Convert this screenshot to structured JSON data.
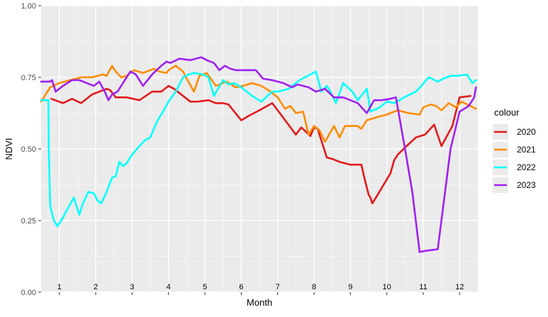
{
  "chart_data": {
    "type": "line",
    "title": "",
    "xlabel": "Month",
    "ylabel": "NDVI",
    "xlim": [
      0.5,
      12.5
    ],
    "ylim": [
      0,
      1
    ],
    "x_ticks": [
      1,
      2,
      3,
      4,
      5,
      6,
      7,
      8,
      9,
      10,
      11,
      12
    ],
    "x_tick_labels": [
      "1",
      "2",
      "3",
      "4",
      "5",
      "6",
      "7",
      "8",
      "9",
      "10",
      "11",
      "12"
    ],
    "y_ticks": [
      0,
      0.25,
      0.5,
      0.75,
      1
    ],
    "y_tick_labels": [
      "0.00",
      "0.25",
      "0.50",
      "0.75",
      "1.00"
    ],
    "grid": true,
    "legend": {
      "title": "colour",
      "position": "right"
    },
    "series": [
      {
        "name": "2020",
        "color": "#e31a1c",
        "x": [
          0.78,
          1.1,
          1.35,
          1.6,
          1.9,
          2.3,
          2.4,
          2.55,
          2.85,
          3.2,
          3.55,
          3.8,
          4.0,
          4.15,
          4.6,
          4.8,
          5.1,
          5.3,
          5.5,
          5.65,
          6.0,
          6.2,
          6.5,
          6.85,
          7.0,
          7.5,
          7.65,
          7.9,
          8.0,
          8.1,
          8.35,
          8.5,
          8.7,
          9.0,
          9.3,
          9.4,
          9.5,
          9.55,
          9.6,
          9.7,
          10.1,
          10.2,
          10.3,
          10.5,
          10.8,
          11.05,
          11.3,
          11.5,
          11.8,
          12.0,
          12.3
        ],
        "y": [
          0.675,
          0.66,
          0.675,
          0.66,
          0.69,
          0.71,
          0.705,
          0.68,
          0.68,
          0.67,
          0.7,
          0.7,
          0.72,
          0.71,
          0.665,
          0.665,
          0.67,
          0.66,
          0.66,
          0.655,
          0.6,
          0.615,
          0.635,
          0.66,
          0.635,
          0.55,
          0.575,
          0.545,
          0.575,
          0.57,
          0.47,
          0.465,
          0.455,
          0.445,
          0.445,
          0.39,
          0.34,
          0.33,
          0.31,
          0.33,
          0.415,
          0.46,
          0.48,
          0.505,
          0.54,
          0.55,
          0.585,
          0.51,
          0.58,
          0.68,
          0.685
        ]
      },
      {
        "name": "2021",
        "color": "#ff8c00",
        "x": [
          0.5,
          0.75,
          1.0,
          1.3,
          1.6,
          1.9,
          2.2,
          2.3,
          2.45,
          2.55,
          2.7,
          2.85,
          3.05,
          3.3,
          3.6,
          3.75,
          3.95,
          4.0,
          4.2,
          4.4,
          4.5,
          4.7,
          4.85,
          5.05,
          5.3,
          5.6,
          5.85,
          6.05,
          6.3,
          6.55,
          6.75,
          7.0,
          7.2,
          7.35,
          7.5,
          7.7,
          7.85,
          8.0,
          8.15,
          8.3,
          8.55,
          8.7,
          8.85,
          9.2,
          9.3,
          9.45,
          9.7,
          10.0,
          10.3,
          10.6,
          10.9,
          11.0,
          11.2,
          11.35,
          11.5,
          11.7,
          11.9,
          12.05,
          12.3,
          12.45
        ],
        "y": [
          0.665,
          0.715,
          0.73,
          0.74,
          0.75,
          0.75,
          0.76,
          0.755,
          0.79,
          0.77,
          0.75,
          0.755,
          0.775,
          0.765,
          0.78,
          0.77,
          0.765,
          0.775,
          0.79,
          0.77,
          0.745,
          0.7,
          0.755,
          0.765,
          0.72,
          0.735,
          0.715,
          0.72,
          0.73,
          0.72,
          0.705,
          0.68,
          0.64,
          0.65,
          0.625,
          0.63,
          0.55,
          0.58,
          0.565,
          0.525,
          0.58,
          0.54,
          0.58,
          0.58,
          0.57,
          0.6,
          0.61,
          0.62,
          0.635,
          0.625,
          0.62,
          0.645,
          0.655,
          0.65,
          0.635,
          0.66,
          0.645,
          0.665,
          0.65,
          0.64
        ]
      },
      {
        "name": "2022",
        "color": "#00ffff",
        "x": [
          0.5,
          0.7,
          0.71,
          0.75,
          0.85,
          0.95,
          1.1,
          1.2,
          1.4,
          1.55,
          1.65,
          1.8,
          1.95,
          2.05,
          2.15,
          2.3,
          2.45,
          2.55,
          2.65,
          2.75,
          2.85,
          3.0,
          3.2,
          3.35,
          3.5,
          3.7,
          3.85,
          4.0,
          4.2,
          4.4,
          4.55,
          4.7,
          4.95,
          5.1,
          5.25,
          5.5,
          5.65,
          5.8,
          6.0,
          6.3,
          6.55,
          6.85,
          7.0,
          7.3,
          7.6,
          7.9,
          8.05,
          8.2,
          8.35,
          8.45,
          8.6,
          8.8,
          9.05,
          9.2,
          9.45,
          9.55,
          9.8,
          10.0,
          10.2,
          10.55,
          10.8,
          10.95,
          11.15,
          11.4,
          11.55,
          11.75,
          11.95,
          12.2,
          12.35,
          12.45
        ],
        "y": [
          0.67,
          0.67,
          0.5,
          0.3,
          0.25,
          0.23,
          0.26,
          0.285,
          0.33,
          0.27,
          0.31,
          0.35,
          0.345,
          0.32,
          0.31,
          0.35,
          0.4,
          0.405,
          0.455,
          0.44,
          0.45,
          0.48,
          0.51,
          0.53,
          0.54,
          0.6,
          0.63,
          0.665,
          0.7,
          0.75,
          0.76,
          0.765,
          0.76,
          0.75,
          0.685,
          0.74,
          0.725,
          0.73,
          0.715,
          0.685,
          0.665,
          0.7,
          0.7,
          0.71,
          0.74,
          0.76,
          0.77,
          0.7,
          0.72,
          0.7,
          0.66,
          0.73,
          0.7,
          0.67,
          0.71,
          0.63,
          0.645,
          0.665,
          0.66,
          0.685,
          0.7,
          0.72,
          0.75,
          0.735,
          0.745,
          0.755,
          0.755,
          0.76,
          0.73,
          0.74
        ]
      },
      {
        "name": "2023",
        "color": "#a020f0",
        "x": [
          0.5,
          0.75,
          0.8,
          0.9,
          1.1,
          1.35,
          1.55,
          1.75,
          1.95,
          2.1,
          2.25,
          2.35,
          2.45,
          2.6,
          2.75,
          2.95,
          3.1,
          3.3,
          3.55,
          3.8,
          3.95,
          4.05,
          4.3,
          4.6,
          4.75,
          4.9,
          5.05,
          5.25,
          5.4,
          5.55,
          5.7,
          5.85,
          6.05,
          6.4,
          6.6,
          6.85,
          7.15,
          7.4,
          7.55,
          7.7,
          7.85,
          8.05,
          8.3,
          8.55,
          8.8,
          9.0,
          9.2,
          9.45,
          9.65,
          9.85,
          10.1,
          10.25,
          10.5,
          10.7,
          10.9,
          11.1,
          11.4,
          11.75,
          12.0,
          12.25,
          12.4,
          12.45
        ],
        "y": [
          0.735,
          0.735,
          0.74,
          0.7,
          0.72,
          0.74,
          0.74,
          0.73,
          0.72,
          0.735,
          0.7,
          0.67,
          0.69,
          0.7,
          0.73,
          0.77,
          0.76,
          0.72,
          0.76,
          0.79,
          0.805,
          0.8,
          0.815,
          0.81,
          0.815,
          0.82,
          0.81,
          0.8,
          0.775,
          0.79,
          0.78,
          0.775,
          0.775,
          0.775,
          0.745,
          0.74,
          0.73,
          0.715,
          0.725,
          0.72,
          0.715,
          0.7,
          0.71,
          0.68,
          0.68,
          0.67,
          0.66,
          0.625,
          0.67,
          0.67,
          0.675,
          0.68,
          0.5,
          0.35,
          0.14,
          0.145,
          0.15,
          0.5,
          0.63,
          0.65,
          0.68,
          0.715
        ]
      }
    ]
  }
}
